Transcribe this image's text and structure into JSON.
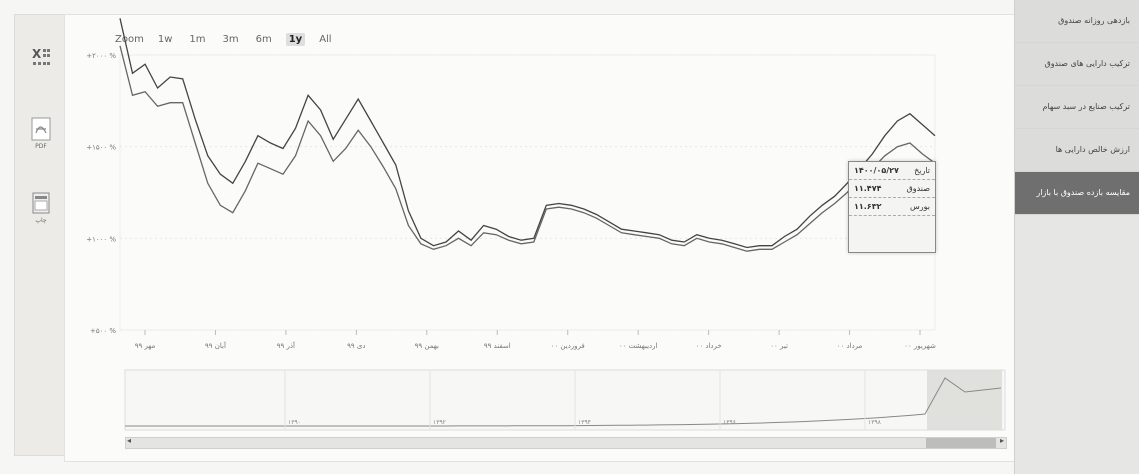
{
  "toolbar": {
    "items": [
      {
        "icon": "excel-icon",
        "label": ""
      },
      {
        "icon": "pdf-icon",
        "label": "PDF"
      },
      {
        "icon": "print-icon",
        "label": "چاپ"
      }
    ]
  },
  "zoom": {
    "label": "Zoom",
    "buttons": [
      "1w",
      "1m",
      "3m",
      "6m",
      "1y",
      "All"
    ],
    "selected": "1y"
  },
  "right_menu": {
    "items": [
      {
        "label": "بازدهی روزانه صندوق",
        "active": false
      },
      {
        "label": "ترکیب دارایی های صندوق",
        "active": false
      },
      {
        "label": "ترکیب صنایع در سبد سهام",
        "active": false
      },
      {
        "label": "ارزش خالص دارایی ها",
        "active": false
      },
      {
        "label": "مقایسه بازده صندوق با بازار",
        "active": true
      }
    ]
  },
  "tooltip": {
    "rows": [
      {
        "label": "تاریخ",
        "value": "۱۴۰۰/۰۵/۲۷"
      },
      {
        "label": "صندوق",
        "value": "۱۱.۴۷۴"
      },
      {
        "label": "بورس",
        "value": "۱۱.۶۳۲"
      }
    ]
  },
  "chart_data": {
    "type": "line",
    "y_ticks": [
      "+۲۰۰۰ %",
      "+۱۵۰۰ %",
      "+۱۰۰۰ %",
      "+۵۰۰ %"
    ],
    "x_ticks": [
      "مهر ۹۹",
      "آبان ۹۹",
      "آذر ۹۹",
      "دی ۹۹",
      "بهمن ۹۹",
      "اسفند ۹۹",
      "فروردین ۰۰",
      "اردیبهشت ۰۰",
      "خرداد ۰۰",
      "تیر ۰۰",
      "مرداد ۰۰",
      "شهریور ۰۰"
    ],
    "navigator_ticks": [
      "۱۳۹۰",
      "۱۳۹۲",
      "۱۳۹۴",
      "۱۳۹۶",
      "۱۳۹۸"
    ],
    "ylim": [
      500,
      2000
    ],
    "series": [
      {
        "name": "صندوق",
        "color": "#444444",
        "values": [
          2200,
          1900,
          1950,
          1820,
          1880,
          1870,
          1650,
          1450,
          1350,
          1300,
          1420,
          1560,
          1520,
          1490,
          1600,
          1780,
          1700,
          1540,
          1650,
          1760,
          1640,
          1520,
          1400,
          1150,
          1000,
          960,
          980,
          1040,
          990,
          1070,
          1050,
          1010,
          990,
          1000,
          1180,
          1190,
          1180,
          1160,
          1130,
          1090,
          1050,
          1040,
          1030,
          1020,
          990,
          980,
          1020,
          1000,
          990,
          970,
          950,
          960,
          960,
          1010,
          1050,
          1120,
          1180,
          1230,
          1300,
          1380,
          1460,
          1560,
          1640,
          1680,
          1620,
          1560
        ]
      },
      {
        "name": "بورس",
        "color": "#666666",
        "values": [
          2050,
          1780,
          1800,
          1720,
          1740,
          1740,
          1520,
          1300,
          1180,
          1140,
          1260,
          1410,
          1380,
          1350,
          1450,
          1640,
          1560,
          1420,
          1490,
          1590,
          1500,
          1390,
          1270,
          1070,
          970,
          940,
          960,
          1000,
          960,
          1030,
          1020,
          990,
          970,
          980,
          1160,
          1170,
          1160,
          1140,
          1110,
          1070,
          1030,
          1020,
          1010,
          1000,
          970,
          960,
          1000,
          980,
          970,
          950,
          930,
          940,
          940,
          980,
          1020,
          1080,
          1140,
          1190,
          1250,
          1320,
          1380,
          1450,
          1500,
          1520,
          1460,
          1410
        ]
      }
    ]
  }
}
